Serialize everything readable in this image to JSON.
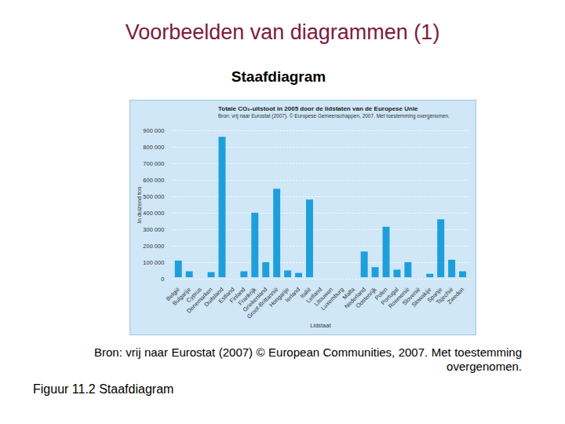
{
  "page": {
    "heading": "Voorbeelden van diagrammen (1)",
    "subheading": "Staafdiagram",
    "source": "Bron: vrij naar Eurostat (2007) © European Communities, 2007. Met toestemming overgenomen.",
    "caption": "Figuur 11.2  Staafdiagram"
  },
  "chart_data": {
    "type": "bar",
    "title": "Totale CO₂-uitstoot in 2005 door de lidstaten van de Europese Unie",
    "subtitle": "Bron: vrij naar Eurostat (2007). © Europese Gemeenschappen, 2007. Met toestemming overgenomen.",
    "x_label": "Lidstaat",
    "y_label": "In duizend ton",
    "categories": [
      "België",
      "Bulgarije",
      "Cyprus",
      "Denemarken",
      "Duitsland",
      "Estland",
      "Finland",
      "Frankrijk",
      "Griekenland",
      "Groot-Brittannië",
      "Hongarije",
      "Ierland",
      "Italië",
      "Letland",
      "Litouwen",
      "Luxemburg",
      "Malta",
      "Nederland",
      "Oostenrijk",
      "Polen",
      "Portugal",
      "Roemenië",
      "Slovenië",
      "Slowakije",
      "Spanje",
      "Tsjechië",
      "Zweden"
    ],
    "values": [
      120000,
      55000,
      8000,
      50000,
      870000,
      18000,
      55000,
      410000,
      110000,
      555000,
      60000,
      45000,
      490000,
      8000,
      15000,
      12000,
      3000,
      175000,
      80000,
      325000,
      65000,
      110000,
      18000,
      40000,
      370000,
      125000,
      55000
    ],
    "color": "#1e9fdc",
    "ylim": [
      0,
      900000
    ],
    "yticks": [
      0,
      {
        "value": 100000,
        "label": "100 000"
      },
      {
        "value": 200000,
        "label": "200 000"
      },
      {
        "value": 300000,
        "label": "300 000"
      },
      {
        "value": 400000,
        "label": "400 000"
      },
      {
        "value": 500000,
        "label": "500 000"
      },
      {
        "value": 600000,
        "label": "600 000"
      },
      {
        "value": 700000,
        "label": "700 000"
      },
      {
        "value": 800000,
        "label": "800 000"
      },
      {
        "value": 900000,
        "label": "900 000"
      }
    ],
    "grid": true
  }
}
